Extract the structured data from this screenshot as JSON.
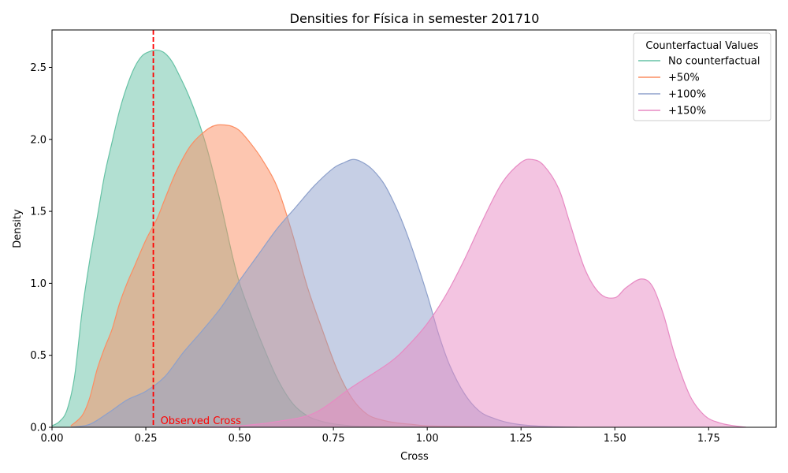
{
  "chart_data": {
    "type": "area",
    "title": "Densities for Física in semester 201710",
    "xlabel": "Cross",
    "ylabel": "Density",
    "xlim": [
      0.0,
      1.93
    ],
    "ylim": [
      0.0,
      2.76
    ],
    "xticks": [
      "0.00",
      "0.25",
      "0.50",
      "0.75",
      "1.00",
      "1.25",
      "1.50",
      "1.75"
    ],
    "yticks": [
      "0.0",
      "0.5",
      "1.0",
      "1.5",
      "2.0",
      "2.5"
    ],
    "grid": false,
    "legend": {
      "title": "Counterfactual Values",
      "placement": "top-right",
      "entries": [
        "No counterfactual",
        "+50%",
        "+100%",
        "+150%"
      ]
    },
    "series": [
      {
        "name": "No counterfactual",
        "color": "#66c2a5",
        "fill_opacity": 0.5,
        "x": [
          0.0,
          0.02,
          0.04,
          0.06,
          0.08,
          0.1,
          0.12,
          0.14,
          0.16,
          0.18,
          0.2,
          0.22,
          0.24,
          0.26,
          0.28,
          0.3,
          0.32,
          0.34,
          0.36,
          0.38,
          0.4,
          0.42,
          0.45,
          0.48,
          0.5,
          0.53,
          0.56,
          0.6,
          0.64,
          0.68,
          0.72,
          0.76,
          0.8,
          0.85,
          0.9,
          0.95,
          1.0,
          1.05
        ],
        "y": [
          0.01,
          0.04,
          0.12,
          0.35,
          0.8,
          1.15,
          1.45,
          1.75,
          1.98,
          2.2,
          2.37,
          2.5,
          2.58,
          2.61,
          2.62,
          2.6,
          2.54,
          2.44,
          2.33,
          2.2,
          2.05,
          1.87,
          1.55,
          1.2,
          1.0,
          0.78,
          0.58,
          0.34,
          0.17,
          0.08,
          0.04,
          0.02,
          0.01,
          0.005,
          0.003,
          0.002,
          0.001,
          0.0
        ]
      },
      {
        "name": "+50%",
        "color": "#fc8d62",
        "fill_opacity": 0.5,
        "x": [
          0.05,
          0.08,
          0.1,
          0.12,
          0.14,
          0.16,
          0.18,
          0.2,
          0.22,
          0.25,
          0.28,
          0.3,
          0.33,
          0.36,
          0.38,
          0.4,
          0.42,
          0.44,
          0.46,
          0.48,
          0.5,
          0.53,
          0.56,
          0.6,
          0.64,
          0.68,
          0.72,
          0.76,
          0.8,
          0.84,
          0.88,
          0.92,
          0.96,
          1.0,
          1.1,
          1.2,
          1.3
        ],
        "y": [
          0.01,
          0.08,
          0.2,
          0.4,
          0.55,
          0.68,
          0.86,
          1.0,
          1.12,
          1.3,
          1.45,
          1.58,
          1.77,
          1.92,
          1.99,
          2.04,
          2.08,
          2.1,
          2.1,
          2.09,
          2.06,
          1.97,
          1.86,
          1.67,
          1.35,
          0.98,
          0.68,
          0.4,
          0.2,
          0.09,
          0.05,
          0.03,
          0.02,
          0.01,
          0.005,
          0.002,
          0.0
        ]
      },
      {
        "name": "+100%",
        "color": "#8da0cb",
        "fill_opacity": 0.5,
        "x": [
          0.05,
          0.1,
          0.15,
          0.2,
          0.25,
          0.3,
          0.35,
          0.4,
          0.45,
          0.5,
          0.55,
          0.6,
          0.65,
          0.7,
          0.75,
          0.78,
          0.8,
          0.82,
          0.85,
          0.88,
          0.9,
          0.93,
          0.96,
          1.0,
          1.03,
          1.06,
          1.1,
          1.14,
          1.18,
          1.22,
          1.26,
          1.3,
          1.35,
          1.4
        ],
        "y": [
          0.0,
          0.02,
          0.1,
          0.19,
          0.25,
          0.35,
          0.52,
          0.67,
          0.83,
          1.02,
          1.2,
          1.38,
          1.53,
          1.68,
          1.8,
          1.84,
          1.86,
          1.85,
          1.8,
          1.71,
          1.62,
          1.45,
          1.24,
          0.92,
          0.65,
          0.43,
          0.23,
          0.11,
          0.06,
          0.03,
          0.015,
          0.008,
          0.003,
          0.0
        ]
      },
      {
        "name": "+150%",
        "color": "#e78ac3",
        "fill_opacity": 0.5,
        "x": [
          0.4,
          0.5,
          0.6,
          0.7,
          0.8,
          0.9,
          0.95,
          1.0,
          1.05,
          1.1,
          1.15,
          1.2,
          1.25,
          1.28,
          1.31,
          1.35,
          1.38,
          1.42,
          1.46,
          1.5,
          1.53,
          1.57,
          1.6,
          1.63,
          1.66,
          1.7,
          1.74,
          1.78,
          1.82,
          1.85
        ],
        "y": [
          0.0,
          0.01,
          0.04,
          0.1,
          0.28,
          0.45,
          0.57,
          0.72,
          0.92,
          1.17,
          1.45,
          1.7,
          1.84,
          1.86,
          1.82,
          1.66,
          1.42,
          1.1,
          0.93,
          0.9,
          0.97,
          1.03,
          0.98,
          0.78,
          0.5,
          0.22,
          0.08,
          0.03,
          0.01,
          0.0
        ]
      }
    ],
    "annotations": [
      {
        "type": "vline",
        "x": 0.27,
        "color": "#ff0000",
        "style": "dashed",
        "label": "Observed Cross"
      }
    ]
  }
}
